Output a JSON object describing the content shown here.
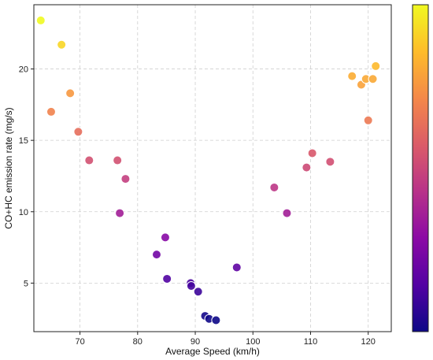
{
  "chart_data": {
    "type": "scatter",
    "title": "",
    "xlabel": "Average Speed (km/h)",
    "ylabel": "CO+HC emission rate (mg/s)",
    "xlim": [
      62,
      124
    ],
    "ylim": [
      1.6,
      24.5
    ],
    "xticks": [
      70,
      80,
      90,
      100,
      110,
      120
    ],
    "yticks": [
      5,
      10,
      15,
      20
    ],
    "grid": true,
    "colorbar": true,
    "colormap": "plasma",
    "color_by": "y",
    "colormap_stops": [
      "#0d0887",
      "#5302a3",
      "#8b0aa5",
      "#b83289",
      "#db5c68",
      "#f48849",
      "#febc2a",
      "#f0f921"
    ],
    "points": [
      {
        "x": 63.2,
        "y": 23.4
      },
      {
        "x": 66.8,
        "y": 21.7
      },
      {
        "x": 68.3,
        "y": 18.3
      },
      {
        "x": 65.0,
        "y": 17.0
      },
      {
        "x": 69.7,
        "y": 15.6
      },
      {
        "x": 71.6,
        "y": 13.6
      },
      {
        "x": 76.5,
        "y": 13.6
      },
      {
        "x": 77.9,
        "y": 12.3
      },
      {
        "x": 76.9,
        "y": 9.9
      },
      {
        "x": 84.8,
        "y": 8.2
      },
      {
        "x": 83.3,
        "y": 7.0
      },
      {
        "x": 85.1,
        "y": 5.3
      },
      {
        "x": 89.2,
        "y": 5.0
      },
      {
        "x": 89.3,
        "y": 4.8
      },
      {
        "x": 90.5,
        "y": 4.4
      },
      {
        "x": 97.2,
        "y": 6.1
      },
      {
        "x": 91.7,
        "y": 2.7
      },
      {
        "x": 92.4,
        "y": 2.5
      },
      {
        "x": 93.6,
        "y": 2.4
      },
      {
        "x": 103.7,
        "y": 11.7
      },
      {
        "x": 105.9,
        "y": 9.9
      },
      {
        "x": 109.3,
        "y": 13.1
      },
      {
        "x": 110.3,
        "y": 14.1
      },
      {
        "x": 113.4,
        "y": 13.5
      },
      {
        "x": 117.2,
        "y": 19.5
      },
      {
        "x": 118.8,
        "y": 18.9
      },
      {
        "x": 119.6,
        "y": 19.3
      },
      {
        "x": 120.0,
        "y": 16.4
      },
      {
        "x": 120.8,
        "y": 19.3
      },
      {
        "x": 121.3,
        "y": 20.2
      }
    ]
  }
}
